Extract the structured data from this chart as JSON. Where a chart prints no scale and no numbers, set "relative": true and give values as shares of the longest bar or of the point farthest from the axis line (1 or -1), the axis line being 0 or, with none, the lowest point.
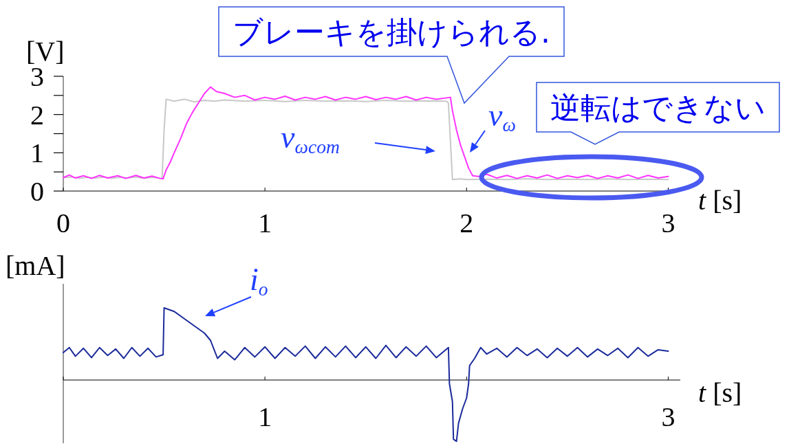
{
  "chart_data": [
    {
      "type": "line",
      "ylabel": "[V]",
      "xlabel": "t [s]",
      "xlim": [
        0,
        3.06
      ],
      "ylim": [
        0,
        3
      ],
      "xticks": [
        0,
        1,
        2,
        3
      ],
      "yticks": [
        0,
        {
          "value": 0.5,
          "label": null
        },
        1,
        {
          "value": 1.5,
          "label": null
        },
        2,
        {
          "value": 2.5,
          "label": null
        },
        3
      ],
      "grid": false,
      "marker": "none",
      "line_style": "solid",
      "series": [
        {
          "color": "#c8c8c8",
          "x": [
            0,
            0.04,
            0.08,
            0.12,
            0.16,
            0.2,
            0.24,
            0.28,
            0.32,
            0.36,
            0.4,
            0.44,
            0.49,
            0.5,
            0.51,
            0.55,
            0.6,
            0.65,
            0.7,
            0.75,
            0.8,
            0.9,
            1.0,
            1.1,
            1.2,
            1.3,
            1.4,
            1.5,
            1.6,
            1.7,
            1.8,
            1.9,
            1.91,
            1.93,
            1.97,
            2.0,
            2.1,
            2.2,
            2.3,
            2.4,
            2.5,
            2.6,
            2.7,
            2.8,
            2.9,
            3.0
          ],
          "values": [
            0.35,
            0.37,
            0.33,
            0.36,
            0.34,
            0.37,
            0.33,
            0.36,
            0.34,
            0.37,
            0.33,
            0.36,
            0.33,
            1.6,
            2.4,
            2.35,
            2.4,
            2.33,
            2.37,
            2.35,
            2.38,
            2.35,
            2.37,
            2.34,
            2.37,
            2.35,
            2.36,
            2.34,
            2.37,
            2.35,
            2.36,
            2.35,
            2.3,
            0.3,
            0.32,
            0.3,
            0.31,
            0.3,
            0.32,
            0.3,
            0.31,
            0.3,
            0.32,
            0.3,
            0.31,
            0.3
          ]
        },
        {
          "color": "#ff33ff",
          "x": [
            0,
            0.03,
            0.06,
            0.1,
            0.14,
            0.18,
            0.22,
            0.27,
            0.31,
            0.36,
            0.4,
            0.44,
            0.48,
            0.495,
            0.51,
            0.53,
            0.55,
            0.58,
            0.61,
            0.64,
            0.67,
            0.7,
            0.73,
            0.76,
            0.8,
            0.85,
            0.9,
            0.95,
            1.0,
            1.05,
            1.1,
            1.15,
            1.2,
            1.25,
            1.3,
            1.35,
            1.4,
            1.45,
            1.5,
            1.55,
            1.6,
            1.65,
            1.7,
            1.75,
            1.8,
            1.85,
            1.92,
            1.93,
            1.95,
            1.97,
            1.99,
            2.01,
            2.03,
            2.06,
            2.1,
            2.15,
            2.2,
            2.25,
            2.3,
            2.35,
            2.4,
            2.45,
            2.5,
            2.55,
            2.6,
            2.65,
            2.7,
            2.75,
            2.8,
            2.85,
            2.9,
            2.95,
            3.0
          ],
          "values": [
            0.35,
            0.42,
            0.34,
            0.4,
            0.33,
            0.41,
            0.34,
            0.4,
            0.33,
            0.41,
            0.34,
            0.39,
            0.33,
            0.32,
            0.55,
            0.75,
            1.0,
            1.35,
            1.75,
            2.05,
            2.3,
            2.55,
            2.72,
            2.6,
            2.55,
            2.45,
            2.5,
            2.38,
            2.45,
            2.4,
            2.48,
            2.38,
            2.45,
            2.4,
            2.47,
            2.38,
            2.45,
            2.4,
            2.47,
            2.39,
            2.45,
            2.4,
            2.47,
            2.38,
            2.45,
            2.4,
            2.45,
            2.1,
            1.6,
            1.2,
            0.9,
            0.6,
            0.4,
            0.38,
            0.44,
            0.34,
            0.41,
            0.33,
            0.4,
            0.34,
            0.42,
            0.33,
            0.4,
            0.35,
            0.41,
            0.33,
            0.4,
            0.34,
            0.42,
            0.33,
            0.41,
            0.34,
            0.38
          ]
        }
      ],
      "annotations": [
        "ブレーキを掛けられる.",
        "逆転はできない",
        "v$_{ωcom}$",
        "v$_{ω}$"
      ]
    },
    {
      "type": "line",
      "relative": true,
      "ylabel": "[mA]",
      "xlabel": "t [s]",
      "xlim": [
        0,
        3.06
      ],
      "xticks": [
        {
          "value": 0,
          "label": null
        },
        1,
        {
          "value": 2,
          "label": null
        },
        3
      ],
      "tick_labels": "x",
      "grid": false,
      "marker": "none",
      "line_style": "solid",
      "series": [
        {
          "color": "#1a2a9a",
          "x": [
            0,
            0.03,
            0.06,
            0.1,
            0.14,
            0.18,
            0.22,
            0.26,
            0.3,
            0.34,
            0.38,
            0.42,
            0.46,
            0.495,
            0.5,
            0.55,
            0.6,
            0.65,
            0.7,
            0.73,
            0.765,
            0.8,
            0.85,
            0.9,
            0.95,
            1.0,
            1.05,
            1.1,
            1.15,
            1.2,
            1.25,
            1.3,
            1.35,
            1.4,
            1.45,
            1.5,
            1.55,
            1.6,
            1.65,
            1.7,
            1.75,
            1.8,
            1.85,
            1.91,
            1.915,
            1.93,
            1.935,
            1.95,
            1.96,
            1.98,
            2.0,
            2.01,
            2.015,
            2.04,
            2.07,
            2.1,
            2.15,
            2.2,
            2.25,
            2.3,
            2.35,
            2.4,
            2.45,
            2.5,
            2.55,
            2.6,
            2.65,
            2.7,
            2.75,
            2.8,
            2.85,
            2.9,
            2.95,
            3.0
          ],
          "values": [
            0.38,
            0.45,
            0.33,
            0.44,
            0.31,
            0.45,
            0.34,
            0.43,
            0.3,
            0.45,
            0.33,
            0.44,
            0.32,
            0.35,
            1.0,
            0.95,
            0.85,
            0.75,
            0.65,
            0.55,
            0.3,
            0.4,
            0.28,
            0.45,
            0.32,
            0.46,
            0.3,
            0.45,
            0.33,
            0.47,
            0.3,
            0.46,
            0.32,
            0.47,
            0.31,
            0.46,
            0.3,
            0.48,
            0.31,
            0.46,
            0.33,
            0.47,
            0.31,
            0.45,
            -0.05,
            -0.3,
            -0.82,
            -0.85,
            -0.6,
            -0.4,
            -0.25,
            -0.05,
            0.2,
            0.3,
            0.45,
            0.36,
            0.44,
            0.32,
            0.45,
            0.34,
            0.43,
            0.31,
            0.44,
            0.33,
            0.45,
            0.32,
            0.43,
            0.34,
            0.44,
            0.31,
            0.45,
            0.33,
            0.42,
            0.4
          ]
        }
      ],
      "annotations": [
        "i$_{o}$"
      ]
    }
  ]
}
